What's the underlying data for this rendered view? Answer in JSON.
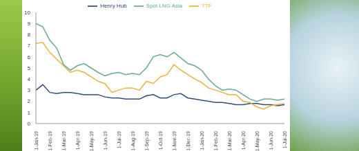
{
  "chart_data": {
    "type": "line",
    "categories": [
      "1-Jan-19",
      null,
      "1-Feb-19",
      null,
      "1-Mar-19",
      null,
      "1-Apr-19",
      null,
      "1-May-19",
      null,
      "1-Jun-19",
      null,
      "1-Jul-19",
      null,
      "1-Aug-19",
      null,
      "1-Sep-19",
      null,
      "1-Oct-19",
      null,
      "1-Nov-19",
      null,
      "1-Dec-19",
      null,
      "1-Jan-20",
      null,
      "1-Feb-20",
      null,
      "1-Mar-20",
      null,
      "1-Apr-20",
      null,
      "1-May-20",
      null,
      "1-Jun-20",
      null,
      "1-Jul-20"
    ],
    "series": [
      {
        "name": "Henry Hub",
        "color": "#2f4b7c",
        "values": [
          3.0,
          3.5,
          2.8,
          2.7,
          2.8,
          2.8,
          2.7,
          2.6,
          2.6,
          2.6,
          2.4,
          2.3,
          2.3,
          2.2,
          2.2,
          2.2,
          2.5,
          2.6,
          2.3,
          2.3,
          2.6,
          2.7,
          2.3,
          2.2,
          2.1,
          2.0,
          1.9,
          1.9,
          1.8,
          1.7,
          1.7,
          1.8,
          1.8,
          1.7,
          1.7,
          1.6,
          1.7
        ]
      },
      {
        "name": "TTF",
        "color": "#e8b33a",
        "values": [
          7.2,
          7.3,
          6.4,
          5.8,
          5.2,
          4.6,
          4.8,
          4.6,
          4.2,
          3.8,
          3.6,
          2.8,
          3.0,
          3.2,
          3.2,
          3.0,
          3.8,
          3.6,
          4.2,
          4.4,
          5.3,
          4.8,
          4.4,
          4.0,
          3.7,
          3.2,
          3.0,
          2.8,
          2.6,
          2.6,
          2.0,
          1.9,
          1.5,
          1.3,
          1.6,
          1.7,
          1.8
        ]
      },
      {
        "name": "Spot LNG Asia",
        "color": "#66a995",
        "values": [
          9.0,
          8.7,
          7.5,
          6.8,
          5.3,
          4.8,
          5.2,
          5.4,
          5.0,
          4.6,
          4.3,
          4.5,
          4.6,
          4.4,
          4.5,
          4.4,
          5.0,
          6.0,
          6.2,
          6.0,
          6.4,
          5.9,
          5.4,
          5.2,
          4.8,
          4.0,
          3.4,
          3.0,
          3.1,
          3.0,
          2.6,
          2.2,
          2.0,
          2.2,
          2.2,
          2.1,
          2.2
        ]
      }
    ],
    "ylim": [
      0,
      10
    ],
    "yticks": [
      0,
      1,
      2,
      3,
      4,
      5,
      6,
      7,
      8,
      9,
      10
    ],
    "grid": false,
    "legend": "top"
  }
}
